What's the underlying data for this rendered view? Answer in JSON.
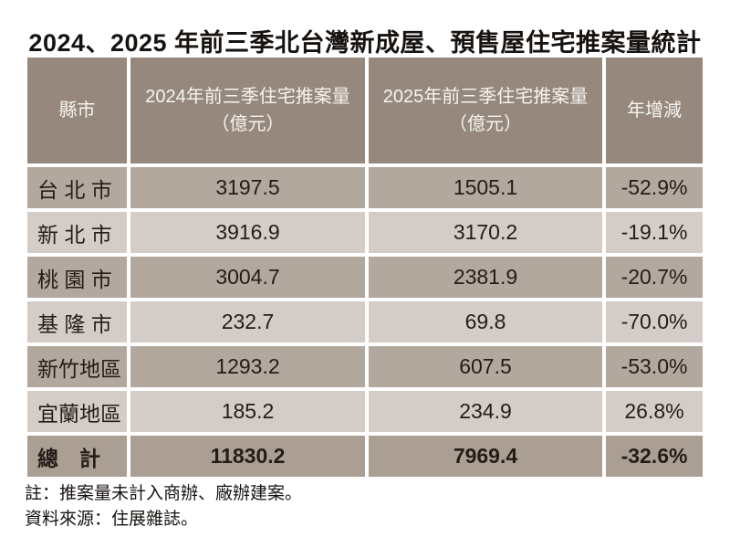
{
  "title": "2024、2025 年前三季北台灣新成屋、預售屋住宅推案量統計",
  "table": {
    "headers": {
      "city": "縣市",
      "col2024_line1": "2024年前三季住宅推案量",
      "col2024_line2": "（億元）",
      "col2025_line1": "2025年前三季住宅推案量",
      "col2025_line2": "（億元）",
      "yoy": "年增減"
    },
    "rows": [
      {
        "city": "台 北 市",
        "y2024": "3197.5",
        "y2025": "1505.1",
        "yoy": "-52.9%"
      },
      {
        "city": "新 北 市",
        "y2024": "3916.9",
        "y2025": "3170.2",
        "yoy": "-19.1%"
      },
      {
        "city": "桃 園 市",
        "y2024": "3004.7",
        "y2025": "2381.9",
        "yoy": "-20.7%"
      },
      {
        "city": "基 隆 市",
        "y2024": "232.7",
        "y2025": "69.8",
        "yoy": "-70.0%"
      },
      {
        "city": "新竹地區",
        "y2024": "1293.2",
        "y2025": "607.5",
        "yoy": "-53.0%"
      },
      {
        "city": "宜蘭地區",
        "y2024": "185.2",
        "y2025": "234.9",
        "yoy": "26.8%"
      }
    ],
    "total": {
      "city": "總　計",
      "y2024": "11830.2",
      "y2025": "7969.4",
      "yoy": "-32.6%"
    }
  },
  "notes": {
    "note1": "註：推案量未計入商辦、廠辦建案。",
    "note2": "資料來源：住展雜誌。"
  },
  "colors": {
    "header_bg": "#96887d",
    "row_odd_bg": "#b3a89e",
    "row_even_bg": "#d4cdc7",
    "total_bg": "#ab9f94",
    "header_text": "#f7f4f1",
    "body_text": "#241c16",
    "title_text": "#171310"
  },
  "chart_data": {
    "type": "table",
    "title": "2024、2025 年前三季北台灣新成屋、預售屋住宅推案量統計",
    "columns": [
      "縣市",
      "2024年前三季住宅推案量（億元）",
      "2025年前三季住宅推案量（億元）",
      "年增減"
    ],
    "rows": [
      [
        "台北市",
        3197.5,
        1505.1,
        "-52.9%"
      ],
      [
        "新北市",
        3916.9,
        3170.2,
        "-19.1%"
      ],
      [
        "桃園市",
        3004.7,
        2381.9,
        "-20.7%"
      ],
      [
        "基隆市",
        232.7,
        69.8,
        "-70.0%"
      ],
      [
        "新竹地區",
        1293.2,
        607.5,
        "-53.0%"
      ],
      [
        "宜蘭地區",
        185.2,
        234.9,
        "26.8%"
      ],
      [
        "總計",
        11830.2,
        7969.4,
        "-32.6%"
      ]
    ],
    "notes": [
      "註：推案量未計入商辦、廠辦建案。",
      "資料來源：住展雜誌。"
    ]
  }
}
